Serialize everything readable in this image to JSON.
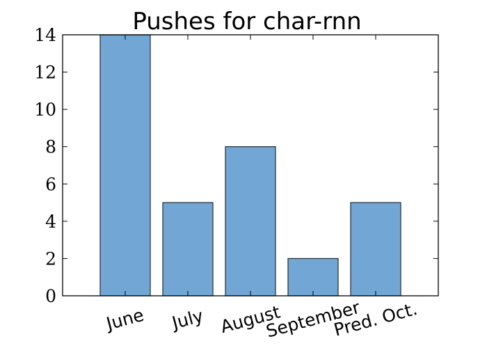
{
  "chart_data": {
    "type": "bar",
    "title": "Pushes for char-rnn",
    "categories": [
      "June",
      "July",
      "August",
      "September",
      "Pred. Oct."
    ],
    "values": [
      14,
      5,
      8,
      2,
      5
    ],
    "ylim": [
      0,
      14
    ],
    "yticks": [
      "0",
      "2",
      "4",
      "6",
      "8",
      "10",
      "12",
      "14"
    ],
    "xlabel": "",
    "ylabel": "",
    "grid": false,
    "legend": "none",
    "colors": {
      "bar_fill": "#72a7d5",
      "bar_edge": "#1f2a33",
      "axes": "#000000"
    }
  }
}
